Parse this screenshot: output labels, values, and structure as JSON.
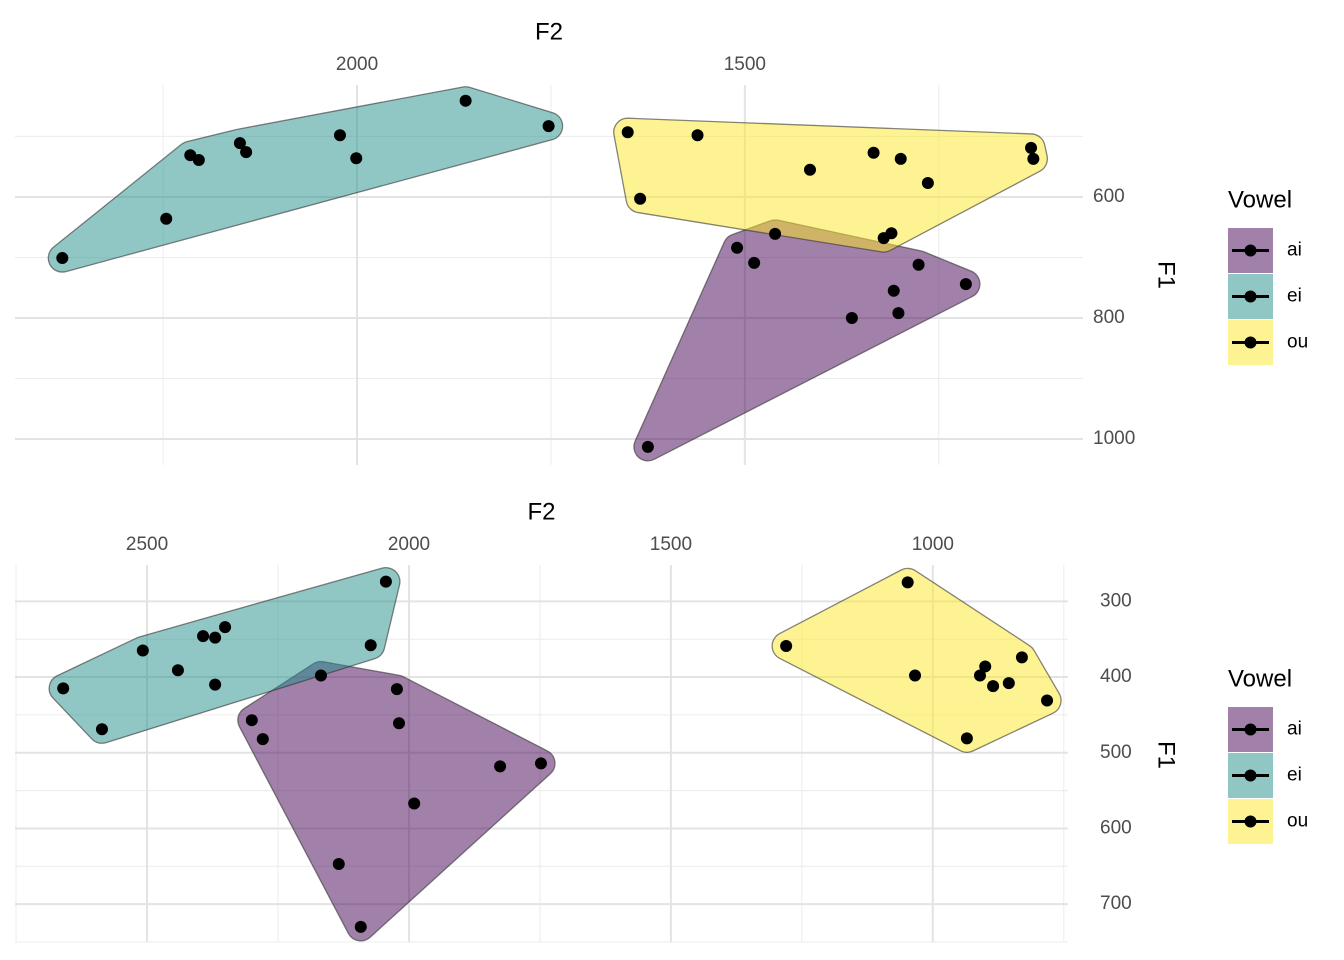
{
  "chart_data": [
    {
      "type": "scatter",
      "x_label": "F2",
      "y_label": "F1",
      "legend_title": "Vowel",
      "xlim": [
        2441,
        1064
      ],
      "ylim": [
        415,
        1043
      ],
      "x_reverse": true,
      "y_reverse": true,
      "x_axis_position": "top",
      "y_axis_position": "right",
      "xticks": [
        2000,
        1500
      ],
      "yticks": [
        600,
        800,
        1000
      ],
      "grid": true,
      "hull": true,
      "opacity": 0.5,
      "legend_position": "right",
      "series": [
        {
          "name": "ai",
          "color": "#440154",
          "x": [
            1510,
            1488,
            1461,
            1276,
            1308,
            1302,
            1215,
            1362,
            1625
          ],
          "values": [
            684,
            709,
            661,
            712,
            755,
            792,
            744,
            800,
            1013
          ]
        },
        {
          "name": "ei",
          "color": "#21908C",
          "x": [
            2380,
            2246,
            2215,
            2204,
            2151,
            2143,
            2022,
            2001,
            1860,
            1753
          ],
          "values": [
            701,
            636,
            531,
            539,
            511,
            526,
            498,
            536,
            441,
            483
          ]
        },
        {
          "name": "ou",
          "color": "#FDE725",
          "x": [
            1651,
            1561,
            1635,
            1416,
            1334,
            1299,
            1264,
            1131,
            1128,
            1321,
            1311
          ],
          "values": [
            493,
            498,
            603,
            555,
            527,
            537,
            577,
            519,
            537,
            668,
            660
          ]
        }
      ]
    },
    {
      "type": "scatter",
      "x_label": "F2",
      "y_label": "F1",
      "legend_title": "Vowel",
      "xlim": [
        2752,
        742
      ],
      "ylim": [
        252,
        750
      ],
      "x_reverse": true,
      "y_reverse": true,
      "x_axis_position": "top",
      "y_axis_position": "right",
      "xticks": [
        2500,
        2000,
        1500,
        1000
      ],
      "yticks": [
        300,
        400,
        500,
        600,
        700
      ],
      "grid": true,
      "hull": true,
      "opacity": 0.5,
      "legend_position": "right",
      "series": [
        {
          "name": "ai",
          "color": "#440154",
          "x": [
            2168,
            2023,
            2019,
            2300,
            2279,
            1826,
            1748,
            1990,
            2134,
            2092
          ],
          "values": [
            398,
            416,
            461,
            457,
            482,
            518,
            514,
            567,
            647,
            730
          ]
        },
        {
          "name": "ei",
          "color": "#21908C",
          "x": [
            2660,
            2586,
            2508,
            2441,
            2393,
            2370,
            2351,
            2370,
            2044,
            2073
          ],
          "values": [
            415,
            469,
            365,
            391,
            346,
            348,
            334,
            410,
            274,
            358
          ]
        },
        {
          "name": "ou",
          "color": "#FDE725",
          "x": [
            1048,
            1280,
            1034,
            900,
            910,
            885,
            855,
            830,
            782,
            935
          ],
          "values": [
            275,
            359,
            398,
            386,
            398,
            412,
            408,
            374,
            431,
            481
          ]
        }
      ]
    }
  ]
}
